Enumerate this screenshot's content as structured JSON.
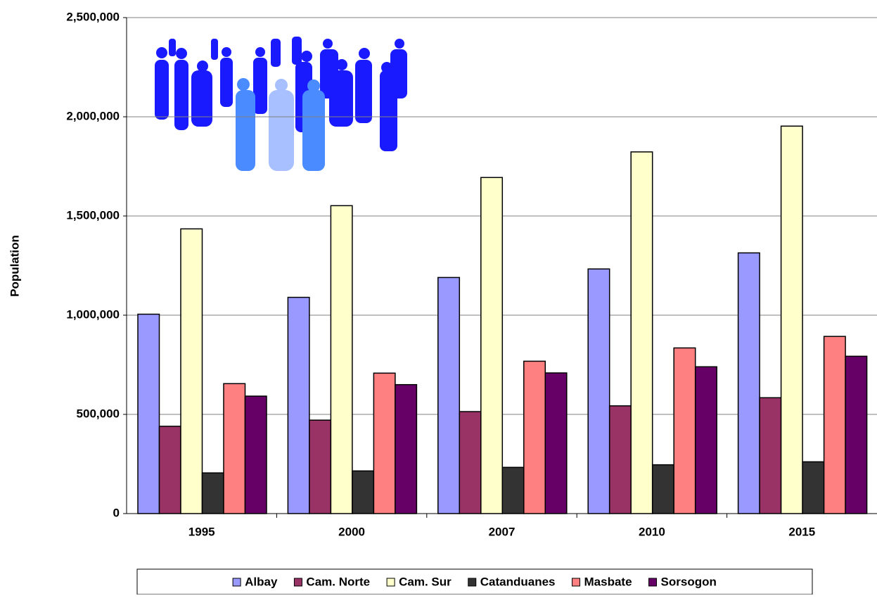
{
  "chart_data": {
    "type": "bar",
    "y_label": "Population",
    "categories": [
      "1995",
      "2000",
      "2007",
      "2010",
      "2015"
    ],
    "series": [
      {
        "name": "Albay",
        "color": "#9999ff",
        "values": [
          1005000,
          1090000,
          1190000,
          1233000,
          1314000
        ]
      },
      {
        "name": "Cam. Norte",
        "color": "#993366",
        "values": [
          440000,
          471000,
          514000,
          543000,
          584000
        ]
      },
      {
        "name": "Cam. Sur",
        "color": "#ffffcc",
        "values": [
          1435000,
          1552000,
          1694000,
          1823000,
          1953000
        ]
      },
      {
        "name": "Catanduanes",
        "color": "#333333",
        "values": [
          205000,
          215000,
          233000,
          246000,
          261000
        ]
      },
      {
        "name": "Masbate",
        "color": "#ff8080",
        "values": [
          655000,
          708000,
          768000,
          835000,
          893000
        ]
      },
      {
        "name": "Sorsogon",
        "color": "#660066",
        "values": [
          592000,
          650000,
          709000,
          740000,
          793000
        ]
      }
    ],
    "ylim": [
      0,
      2500000
    ],
    "yticks": [
      0,
      {
        "value": 500000,
        "label": "500,000"
      },
      {
        "value": 1000000,
        "label": "1,000,000"
      },
      {
        "value": 1500000,
        "label": "1,500,000"
      },
      {
        "value": 2000000,
        "label": "2,000,000"
      },
      {
        "value": 2500000,
        "label": "2,500,000"
      }
    ],
    "grid": true,
    "legend": "bottom"
  }
}
